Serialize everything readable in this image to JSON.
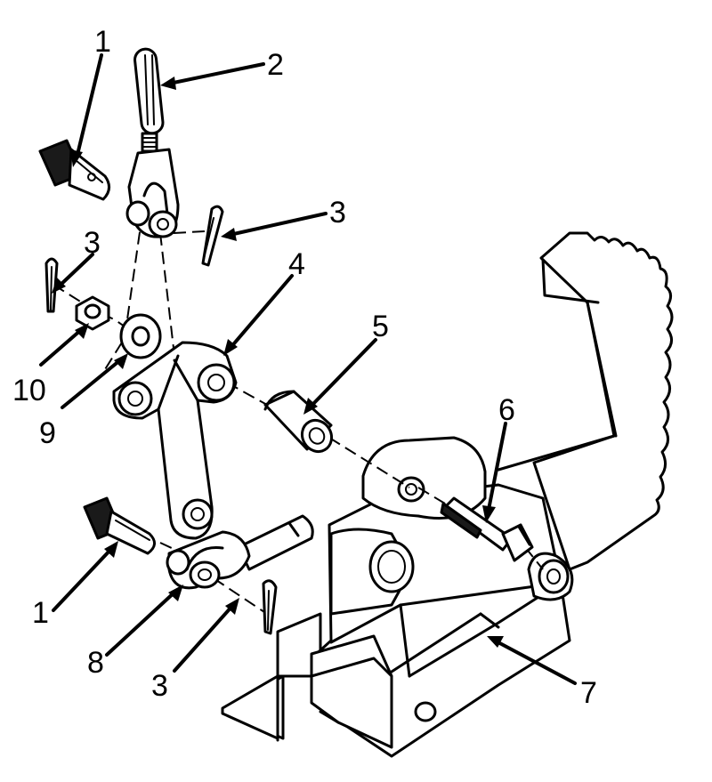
{
  "callouts": [
    "1",
    "2",
    "3",
    "3",
    "4",
    "10",
    "9",
    "5",
    "6",
    "1",
    "8",
    "3",
    "7"
  ]
}
